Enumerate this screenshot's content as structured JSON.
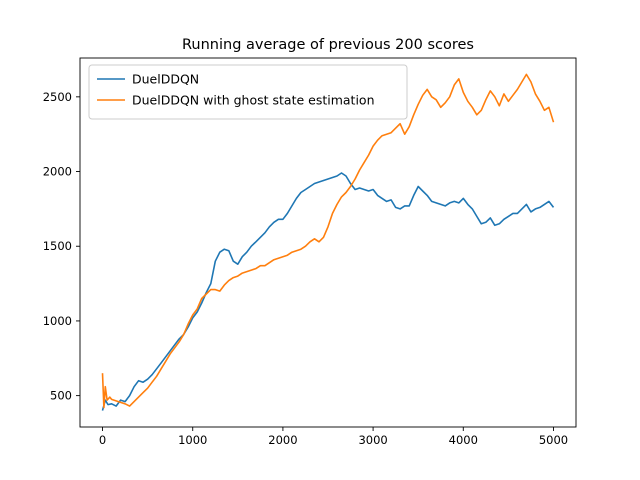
{
  "chart_data": {
    "type": "line",
    "title": "Running average of previous 200 scores",
    "xlabel": "",
    "ylabel": "",
    "xlim": [
      -250,
      5250
    ],
    "ylim": [
      290,
      2760
    ],
    "xticks": [
      0,
      1000,
      2000,
      3000,
      4000,
      5000
    ],
    "yticks": [
      500,
      1000,
      1500,
      2000,
      2500
    ],
    "grid": false,
    "legend": {
      "position": "top-left"
    },
    "series": [
      {
        "name": "DuelDDQN",
        "color": "#1f77b4",
        "points": [
          [
            0,
            400
          ],
          [
            30,
            470
          ],
          [
            60,
            440
          ],
          [
            100,
            445
          ],
          [
            150,
            430
          ],
          [
            200,
            470
          ],
          [
            250,
            460
          ],
          [
            300,
            500
          ],
          [
            350,
            560
          ],
          [
            400,
            600
          ],
          [
            450,
            590
          ],
          [
            500,
            610
          ],
          [
            550,
            640
          ],
          [
            600,
            680
          ],
          [
            650,
            720
          ],
          [
            700,
            760
          ],
          [
            750,
            800
          ],
          [
            800,
            840
          ],
          [
            850,
            880
          ],
          [
            900,
            910
          ],
          [
            950,
            960
          ],
          [
            1000,
            1020
          ],
          [
            1050,
            1060
          ],
          [
            1100,
            1120
          ],
          [
            1150,
            1190
          ],
          [
            1200,
            1250
          ],
          [
            1250,
            1400
          ],
          [
            1300,
            1460
          ],
          [
            1350,
            1480
          ],
          [
            1400,
            1470
          ],
          [
            1450,
            1400
          ],
          [
            1500,
            1380
          ],
          [
            1550,
            1430
          ],
          [
            1600,
            1460
          ],
          [
            1650,
            1500
          ],
          [
            1700,
            1530
          ],
          [
            1750,
            1560
          ],
          [
            1800,
            1590
          ],
          [
            1850,
            1630
          ],
          [
            1900,
            1660
          ],
          [
            1950,
            1680
          ],
          [
            2000,
            1680
          ],
          [
            2050,
            1720
          ],
          [
            2100,
            1770
          ],
          [
            2150,
            1820
          ],
          [
            2200,
            1860
          ],
          [
            2250,
            1880
          ],
          [
            2300,
            1900
          ],
          [
            2350,
            1920
          ],
          [
            2400,
            1930
          ],
          [
            2450,
            1940
          ],
          [
            2500,
            1950
          ],
          [
            2550,
            1960
          ],
          [
            2600,
            1970
          ],
          [
            2650,
            1990
          ],
          [
            2700,
            1970
          ],
          [
            2750,
            1920
          ],
          [
            2800,
            1880
          ],
          [
            2850,
            1890
          ],
          [
            2900,
            1880
          ],
          [
            2950,
            1870
          ],
          [
            3000,
            1880
          ],
          [
            3050,
            1840
          ],
          [
            3100,
            1820
          ],
          [
            3150,
            1800
          ],
          [
            3200,
            1810
          ],
          [
            3250,
            1760
          ],
          [
            3300,
            1750
          ],
          [
            3350,
            1770
          ],
          [
            3400,
            1770
          ],
          [
            3450,
            1840
          ],
          [
            3500,
            1900
          ],
          [
            3550,
            1870
          ],
          [
            3600,
            1840
          ],
          [
            3650,
            1800
          ],
          [
            3700,
            1790
          ],
          [
            3750,
            1780
          ],
          [
            3800,
            1770
          ],
          [
            3850,
            1790
          ],
          [
            3900,
            1800
          ],
          [
            3950,
            1790
          ],
          [
            4000,
            1820
          ],
          [
            4050,
            1780
          ],
          [
            4100,
            1750
          ],
          [
            4150,
            1700
          ],
          [
            4200,
            1650
          ],
          [
            4250,
            1660
          ],
          [
            4300,
            1690
          ],
          [
            4350,
            1640
          ],
          [
            4400,
            1650
          ],
          [
            4450,
            1680
          ],
          [
            4500,
            1700
          ],
          [
            4550,
            1720
          ],
          [
            4600,
            1720
          ],
          [
            4650,
            1750
          ],
          [
            4700,
            1780
          ],
          [
            4750,
            1730
          ],
          [
            4800,
            1750
          ],
          [
            4850,
            1760
          ],
          [
            4900,
            1780
          ],
          [
            4950,
            1800
          ],
          [
            5000,
            1760
          ]
        ]
      },
      {
        "name": "DuelDDQN with ghost state estimation",
        "color": "#ff7f0e",
        "points": [
          [
            0,
            650
          ],
          [
            15,
            420
          ],
          [
            30,
            560
          ],
          [
            50,
            470
          ],
          [
            80,
            490
          ],
          [
            100,
            475
          ],
          [
            150,
            465
          ],
          [
            200,
            455
          ],
          [
            250,
            445
          ],
          [
            300,
            430
          ],
          [
            350,
            460
          ],
          [
            400,
            490
          ],
          [
            450,
            520
          ],
          [
            500,
            550
          ],
          [
            550,
            590
          ],
          [
            600,
            630
          ],
          [
            650,
            680
          ],
          [
            700,
            730
          ],
          [
            750,
            780
          ],
          [
            800,
            820
          ],
          [
            850,
            860
          ],
          [
            900,
            910
          ],
          [
            950,
            980
          ],
          [
            1000,
            1040
          ],
          [
            1050,
            1080
          ],
          [
            1100,
            1150
          ],
          [
            1150,
            1180
          ],
          [
            1200,
            1210
          ],
          [
            1250,
            1210
          ],
          [
            1300,
            1200
          ],
          [
            1350,
            1240
          ],
          [
            1400,
            1270
          ],
          [
            1450,
            1290
          ],
          [
            1500,
            1300
          ],
          [
            1550,
            1320
          ],
          [
            1600,
            1330
          ],
          [
            1650,
            1340
          ],
          [
            1700,
            1350
          ],
          [
            1750,
            1370
          ],
          [
            1800,
            1370
          ],
          [
            1850,
            1390
          ],
          [
            1900,
            1410
          ],
          [
            1950,
            1420
          ],
          [
            2000,
            1430
          ],
          [
            2050,
            1440
          ],
          [
            2100,
            1460
          ],
          [
            2150,
            1470
          ],
          [
            2200,
            1480
          ],
          [
            2250,
            1500
          ],
          [
            2300,
            1530
          ],
          [
            2350,
            1550
          ],
          [
            2400,
            1530
          ],
          [
            2450,
            1560
          ],
          [
            2500,
            1630
          ],
          [
            2550,
            1720
          ],
          [
            2600,
            1780
          ],
          [
            2650,
            1830
          ],
          [
            2700,
            1860
          ],
          [
            2750,
            1900
          ],
          [
            2800,
            1950
          ],
          [
            2850,
            2010
          ],
          [
            2900,
            2060
          ],
          [
            2950,
            2110
          ],
          [
            3000,
            2170
          ],
          [
            3050,
            2210
          ],
          [
            3100,
            2240
          ],
          [
            3150,
            2250
          ],
          [
            3200,
            2260
          ],
          [
            3250,
            2290
          ],
          [
            3300,
            2320
          ],
          [
            3350,
            2250
          ],
          [
            3400,
            2300
          ],
          [
            3450,
            2380
          ],
          [
            3500,
            2450
          ],
          [
            3550,
            2510
          ],
          [
            3600,
            2550
          ],
          [
            3650,
            2500
          ],
          [
            3700,
            2480
          ],
          [
            3750,
            2430
          ],
          [
            3800,
            2460
          ],
          [
            3850,
            2500
          ],
          [
            3900,
            2580
          ],
          [
            3950,
            2620
          ],
          [
            4000,
            2530
          ],
          [
            4050,
            2470
          ],
          [
            4100,
            2430
          ],
          [
            4150,
            2380
          ],
          [
            4200,
            2410
          ],
          [
            4250,
            2480
          ],
          [
            4300,
            2540
          ],
          [
            4350,
            2500
          ],
          [
            4400,
            2440
          ],
          [
            4450,
            2520
          ],
          [
            4500,
            2470
          ],
          [
            4550,
            2510
          ],
          [
            4600,
            2550
          ],
          [
            4650,
            2600
          ],
          [
            4700,
            2650
          ],
          [
            4750,
            2600
          ],
          [
            4800,
            2520
          ],
          [
            4850,
            2470
          ],
          [
            4900,
            2410
          ],
          [
            4950,
            2430
          ],
          [
            5000,
            2330
          ]
        ]
      }
    ]
  }
}
